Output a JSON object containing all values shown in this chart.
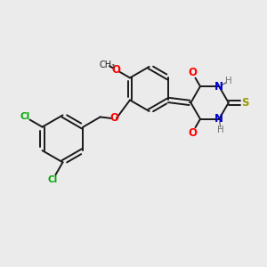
{
  "background_color": "#ebebeb",
  "bond_color": "#1a1a1a",
  "cl_color": "#00aa00",
  "o_color": "#ff0000",
  "n_color": "#0000cc",
  "s_color": "#999900",
  "h_color": "#777777",
  "figsize": [
    3.0,
    3.0
  ],
  "dpi": 100,
  "xlim": [
    0,
    10
  ],
  "ylim": [
    0,
    10
  ]
}
